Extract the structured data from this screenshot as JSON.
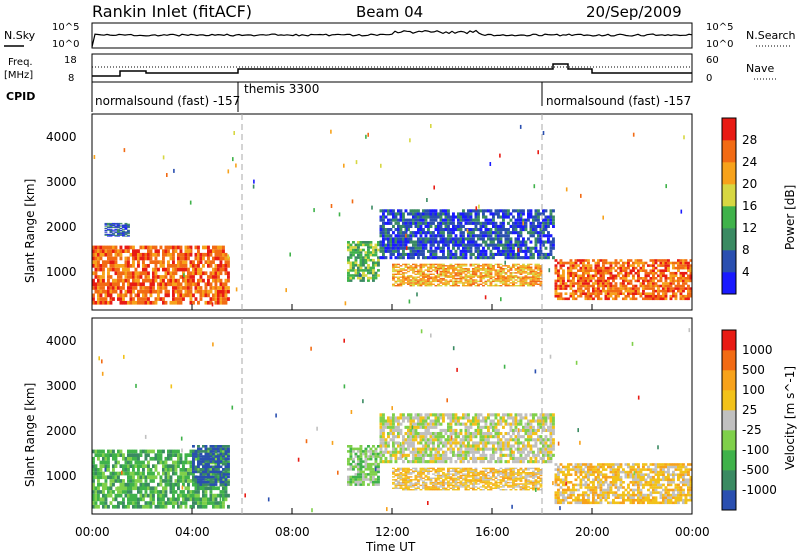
{
  "header": {
    "station": "Rankin Inlet (fitACF)",
    "beam": "Beam 04",
    "date": "20/Sep/2009"
  },
  "top_strip": {
    "left_label": "N.Sky",
    "right_label": "N.Search",
    "left_ticks": [
      "10^5",
      "10^0"
    ],
    "right_ticks": [
      "10^5",
      "10^0"
    ]
  },
  "freq_strip": {
    "left_label_1": "Freq.",
    "left_label_2": "[MHz]",
    "right_label": "Nave",
    "left_ticks": [
      "18",
      "8"
    ],
    "right_ticks": [
      "60",
      "0"
    ]
  },
  "cpid": {
    "label": "CPID",
    "segments": [
      {
        "text": "normalsound (fast) -157",
        "start_hour": 0
      },
      {
        "text": "themis 3300",
        "start_hour": 6
      },
      {
        "text": "normalsound (fast) -157",
        "start_hour": 18
      }
    ]
  },
  "axes": {
    "ylabel": "Slant Range [km]",
    "xlabel": "Time UT",
    "y_ticks": [
      "1000",
      "2000",
      "3000",
      "4000"
    ],
    "x_ticks": [
      "00:00",
      "04:00",
      "08:00",
      "12:00",
      "16:00",
      "20:00",
      "00:00"
    ]
  },
  "power_scale": {
    "title": "Power [dB]",
    "labels": [
      "4",
      "8",
      "12",
      "16",
      "20",
      "24",
      "28"
    ],
    "colors": [
      "#1a1aff",
      "#2a4fb0",
      "#3a8a62",
      "#3fb24a",
      "#d7d742",
      "#f7a21b",
      "#f26b14",
      "#e81b14"
    ]
  },
  "velocity_scale": {
    "title": "Velocity [m s^-1]",
    "labels": [
      "1000",
      "500",
      "100",
      "25",
      "-25",
      "-100",
      "-500",
      "-1000"
    ],
    "colors": [
      "#2a4fb0",
      "#3a8a62",
      "#3fb24a",
      "#7fd04a",
      "#c0c0c0",
      "#f2c21a",
      "#f7a21b",
      "#f26b14",
      "#e81b14"
    ]
  },
  "chart_data": [
    {
      "type": "heatmap",
      "title": "Power [dB]",
      "xlabel": "Time UT",
      "ylabel": "Slant Range [km]",
      "xlim": [
        0,
        24
      ],
      "ylim": [
        180,
        4500
      ],
      "bands": [
        {
          "t0": 0.0,
          "t1": 5.5,
          "r0": 300,
          "r1": 1600,
          "level": 6
        },
        {
          "t0": 0.5,
          "t1": 1.5,
          "r0": 1800,
          "r1": 2100,
          "level": 1
        },
        {
          "t0": 10.2,
          "t1": 11.5,
          "r0": 800,
          "r1": 1700,
          "level": 3
        },
        {
          "t0": 11.5,
          "t1": 18.5,
          "r0": 1300,
          "r1": 2400,
          "level": 1
        },
        {
          "t0": 12.0,
          "t1": 18.0,
          "r0": 700,
          "r1": 1200,
          "level": 5
        },
        {
          "t0": 18.5,
          "t1": 24.0,
          "r0": 400,
          "r1": 1300,
          "level": 6
        }
      ]
    },
    {
      "type": "heatmap",
      "title": "Velocity [m s^-1]",
      "xlabel": "Time UT",
      "ylabel": "Slant Range [km]",
      "xlim": [
        0,
        24
      ],
      "ylim": [
        180,
        4500
      ],
      "bands": [
        {
          "t0": 0.0,
          "t1": 5.5,
          "r0": 300,
          "r1": 1600,
          "level": 2
        },
        {
          "t0": 4.0,
          "t1": 5.5,
          "r0": 800,
          "r1": 1700,
          "level": 0
        },
        {
          "t0": 10.2,
          "t1": 11.5,
          "r0": 800,
          "r1": 1700,
          "level": 3
        },
        {
          "t0": 11.5,
          "t1": 18.5,
          "r0": 1300,
          "r1": 2400,
          "level": 4
        },
        {
          "t0": 12.0,
          "t1": 18.0,
          "r0": 700,
          "r1": 1200,
          "level": 5
        },
        {
          "t0": 18.5,
          "t1": 24.0,
          "r0": 400,
          "r1": 1300,
          "level": 5
        }
      ]
    }
  ]
}
